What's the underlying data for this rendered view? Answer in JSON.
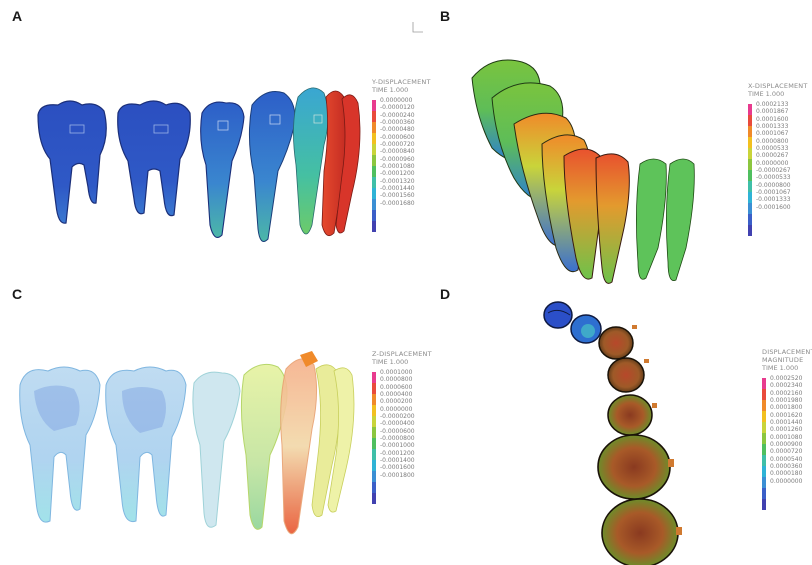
{
  "panels": [
    {
      "letter": "A",
      "legend": {
        "title": "Y-DISPLACEMENT",
        "time": "TIME 1.000",
        "colors": [
          "#e83b8e",
          "#e94b3c",
          "#f08a2a",
          "#f2c020",
          "#c9d43a",
          "#8cc63f",
          "#4fbf5f",
          "#3fbfa8",
          "#2fb3d6",
          "#3b8fd4",
          "#3b5fc8",
          "#4141b0"
        ],
        "values": [
          "0.0000000",
          "-0.0000120",
          "-0.0000240",
          "-0.0000360",
          "-0.0000480",
          "-0.0000600",
          "-0.0000720",
          "-0.0000840",
          "-0.0000960",
          "-0.0001080",
          "-0.0001200",
          "-0.0001320",
          "-0.0001440",
          "-0.0001560",
          "-0.0001680"
        ]
      }
    },
    {
      "letter": "B",
      "legend": {
        "title": "X-DISPLACEMENT",
        "time": "TIME 1.000",
        "colors": [
          "#e83b8e",
          "#e94b3c",
          "#f08a2a",
          "#f2c020",
          "#c9d43a",
          "#8cc63f",
          "#4fbf5f",
          "#3fbfa8",
          "#2fb3d6",
          "#3b8fd4",
          "#3b5fc8",
          "#4141b0"
        ],
        "values": [
          "0.0002133",
          "0.0001867",
          "0.0001600",
          "0.0001333",
          "0.0001067",
          "0.0000800",
          "0.0000533",
          "0.0000267",
          "0.0000000",
          "-0.0000267",
          "-0.0000533",
          "-0.0000800",
          "-0.0001067",
          "-0.0001333",
          "-0.0001600"
        ]
      }
    },
    {
      "letter": "C",
      "legend": {
        "title": "Z-DISPLACEMENT",
        "time": "TIME 1.000",
        "colors": [
          "#e83b8e",
          "#e94b3c",
          "#f08a2a",
          "#f2c020",
          "#c9d43a",
          "#8cc63f",
          "#4fbf5f",
          "#3fbfa8",
          "#2fb3d6",
          "#3b8fd4",
          "#3b5fc8",
          "#4141b0"
        ],
        "values": [
          "0.0001000",
          "0.0000800",
          "0.0000600",
          "0.0000400",
          "0.0000200",
          "0.0000000",
          "-0.0000200",
          "-0.0000400",
          "-0.0000600",
          "-0.0000800",
          "-0.0001000",
          "-0.0001200",
          "-0.0001400",
          "-0.0001600",
          "-0.0001800"
        ]
      }
    },
    {
      "letter": "D",
      "legend": {
        "title": "DISPLACEMENT\nMAGNITUDE",
        "time": "TIME 1.000",
        "colors": [
          "#e83b8e",
          "#e94b3c",
          "#f08a2a",
          "#f2c020",
          "#c9d43a",
          "#8cc63f",
          "#4fbf5f",
          "#3fbfa8",
          "#2fb3d6",
          "#3b8fd4",
          "#3b5fc8",
          "#4141b0"
        ],
        "values": [
          "0.0002520",
          "0.0002340",
          "0.0002160",
          "0.0001980",
          "0.0001800",
          "0.0001620",
          "0.0001440",
          "0.0001260",
          "0.0001080",
          "0.0000900",
          "0.0000720",
          "0.0000540",
          "0.0000360",
          "0.0000180",
          "0.0000000"
        ]
      }
    }
  ]
}
